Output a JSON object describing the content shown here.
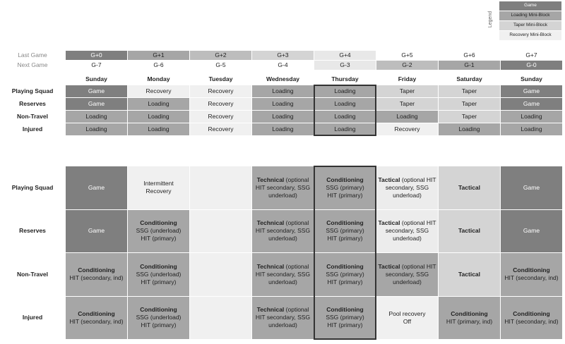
{
  "legend": {
    "title": "Legend",
    "items": [
      {
        "label": "Game",
        "color": "#7f7f7f"
      },
      {
        "label": "Loading Mini-Block",
        "color": "#a6a6a6"
      },
      {
        "label": "Taper Mini-Block",
        "color": "#d4d4d4"
      },
      {
        "label": "Recovery Mini-Block",
        "color": "#f0f0f0"
      }
    ]
  },
  "game_rows": [
    {
      "label": "Last Game",
      "cells": [
        "G+0",
        "G+1",
        "G+2",
        "G+3",
        "G+4",
        "G+5",
        "G+6",
        "G+7"
      ],
      "colors": [
        "#7f7f7f",
        "#a6a6a6",
        "#bdbdbd",
        "#d4d4d4",
        "#e8e8e8",
        "#ffffff",
        "#ffffff",
        "#ffffff"
      ]
    },
    {
      "label": "Next Game",
      "cells": [
        "G-7",
        "G-6",
        "G-5",
        "G-4",
        "G-3",
        "G-2",
        "G-1",
        "G-0"
      ],
      "colors": [
        "#ffffff",
        "#ffffff",
        "#ffffff",
        "#ffffff",
        "#e8e8e8",
        "#bdbdbd",
        "#a6a6a6",
        "#7f7f7f"
      ]
    }
  ],
  "days": [
    "Sunday",
    "Monday",
    "Tuesday",
    "Wednesday",
    "Thursday",
    "Friday",
    "Saturday",
    "Sunday"
  ],
  "highlight_column": 4,
  "schedule": {
    "rows": [
      {
        "label": "Playing Squad",
        "cells": [
          "Game",
          "Recovery",
          "Recovery",
          "Loading",
          "Loading",
          "Taper",
          "Taper",
          "Game"
        ],
        "colors": [
          "#7f7f7f",
          "#f0f0f0",
          "#f0f0f0",
          "#a6a6a6",
          "#a6a6a6",
          "#d4d4d4",
          "#d4d4d4",
          "#7f7f7f"
        ]
      },
      {
        "label": "Reserves",
        "cells": [
          "Game",
          "Loading",
          "Recovery",
          "Loading",
          "Loading",
          "Taper",
          "Taper",
          "Game"
        ],
        "colors": [
          "#7f7f7f",
          "#a6a6a6",
          "#f0f0f0",
          "#a6a6a6",
          "#a6a6a6",
          "#d4d4d4",
          "#d4d4d4",
          "#7f7f7f"
        ]
      },
      {
        "label": "Non-Travel",
        "cells": [
          "Loading",
          "Loading",
          "Recovery",
          "Loading",
          "Loading",
          "Loading",
          "Taper",
          "Loading"
        ],
        "colors": [
          "#a6a6a6",
          "#a6a6a6",
          "#f0f0f0",
          "#a6a6a6",
          "#a6a6a6",
          "#a6a6a6",
          "#d4d4d4",
          "#a6a6a6"
        ]
      },
      {
        "label": "Injured",
        "cells": [
          "Loading",
          "Loading",
          "Recovery",
          "Loading",
          "Loading",
          "Recovery",
          "Loading",
          "Loading"
        ],
        "colors": [
          "#a6a6a6",
          "#a6a6a6",
          "#f0f0f0",
          "#a6a6a6",
          "#a6a6a6",
          "#f0f0f0",
          "#a6a6a6",
          "#a6a6a6"
        ]
      }
    ]
  },
  "sessions": {
    "rows": [
      {
        "label": "Playing Squad",
        "cells": [
          {
            "text": "Game"
          },
          {
            "lines": [
              "Intermittent",
              "Recovery"
            ]
          },
          null,
          {
            "title": "Technical",
            "text": "(optional HIT secondary, SSG underload)"
          },
          {
            "title": "Conditioning",
            "lines": [
              "SSG (primary)",
              "HIT (primary)"
            ]
          },
          {
            "title": "Tactical",
            "text": "(optional HIT secondary, SSG underload)"
          },
          {
            "title": "Tactical"
          },
          {
            "text": "Game"
          }
        ],
        "colors": [
          "#7f7f7f",
          "#f0f0f0",
          "#f0f0f0",
          "#a6a6a6",
          "#a6a6a6",
          "#ececec",
          "#d4d4d4",
          "#7f7f7f"
        ]
      },
      {
        "label": "Reserves",
        "cells": [
          {
            "text": "Game"
          },
          {
            "title": "Conditioning",
            "lines": [
              "SSG (underload)",
              "HIT (primary)"
            ]
          },
          null,
          {
            "title": "Technical",
            "text": "(optional HIT secondary, SSG underload)"
          },
          {
            "title": "Conditioning",
            "lines": [
              "SSG (primary)",
              "HIT (primary)"
            ]
          },
          {
            "title": "Tactical",
            "text": "(optional HIT secondary, SSG underload)"
          },
          {
            "title": "Tactical"
          },
          {
            "text": "Game"
          }
        ],
        "colors": [
          "#7f7f7f",
          "#a6a6a6",
          "#f0f0f0",
          "#a6a6a6",
          "#a6a6a6",
          "#ececec",
          "#d4d4d4",
          "#7f7f7f"
        ]
      },
      {
        "label": "Non-Travel",
        "cells": [
          {
            "title": "Conditioning",
            "lines": [
              "HIT (secondary, ind)"
            ]
          },
          {
            "title": "Conditioning",
            "lines": [
              "SSG (underload)",
              "HIT (primary)"
            ]
          },
          null,
          {
            "title": "Technical",
            "text": "(optional HIT secondary, SSG underload)"
          },
          {
            "title": "Conditioning",
            "lines": [
              "SSG (primary)",
              "HIT (primary)"
            ]
          },
          {
            "title": "Tactical",
            "text": "(optional HIT secondary, SSG underload)"
          },
          {
            "title": "Tactical"
          },
          {
            "title": "Conditioning",
            "lines": [
              "HIT (secondary, ind)"
            ]
          }
        ],
        "colors": [
          "#a6a6a6",
          "#a6a6a6",
          "#f0f0f0",
          "#a6a6a6",
          "#a6a6a6",
          "#a6a6a6",
          "#d4d4d4",
          "#a6a6a6"
        ]
      },
      {
        "label": "Injured",
        "cells": [
          {
            "title": "Conditioning",
            "lines": [
              "HIT (secondary, ind)"
            ]
          },
          {
            "title": "Conditioning",
            "lines": [
              "SSG (underload)",
              "HIT (primary)"
            ]
          },
          null,
          {
            "title": "Technical",
            "text": "(optional HIT secondary, SSG underload)"
          },
          {
            "title": "Conditioning",
            "lines": [
              "SSG (primary)",
              "HIT (primary)"
            ]
          },
          {
            "lines": [
              "Pool recovery",
              "Off"
            ]
          },
          {
            "title": "Conditioning",
            "lines": [
              "HIT (primary, ind)"
            ]
          },
          {
            "title": "Conditioning",
            "lines": [
              "HIT (secondary, ind)"
            ]
          }
        ],
        "colors": [
          "#a6a6a6",
          "#a6a6a6",
          "#f0f0f0",
          "#a6a6a6",
          "#a6a6a6",
          "#f0f0f0",
          "#a6a6a6",
          "#a6a6a6"
        ]
      }
    ]
  }
}
